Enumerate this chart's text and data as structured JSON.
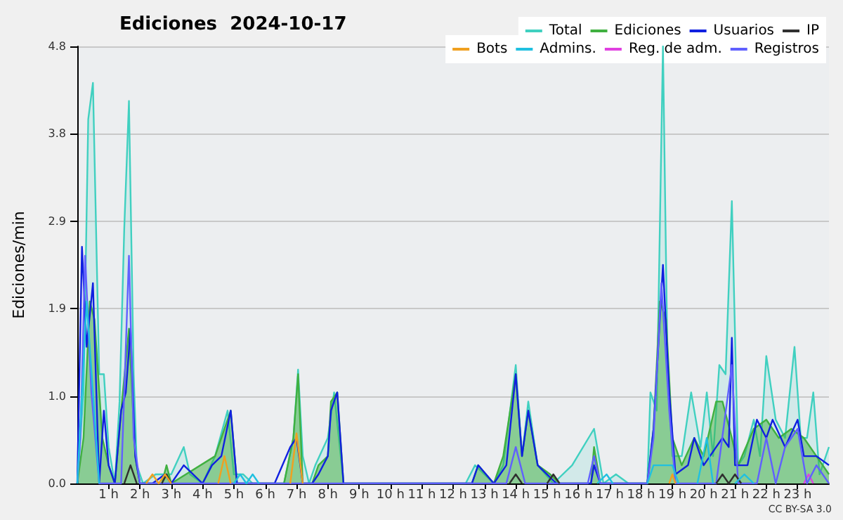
{
  "chart_data": {
    "type": "line",
    "title": "Ediciones  2024-10-17",
    "ylabel": "Ediciones/min",
    "annotations": [
      "CC BY-SA 3.0"
    ],
    "xlim": [
      0,
      24
    ],
    "xticks": [
      {
        "value": 1,
        "label": "1 h"
      },
      {
        "value": 2,
        "label": "2 h"
      },
      {
        "value": 3,
        "label": "3 h"
      },
      {
        "value": 4,
        "label": "4 h"
      },
      {
        "value": 5,
        "label": "5 h"
      },
      {
        "value": 6,
        "label": "6 h"
      },
      {
        "value": 7,
        "label": "7 h"
      },
      {
        "value": 8,
        "label": "8 h"
      },
      {
        "value": 9,
        "label": "9 h"
      },
      {
        "value": 10,
        "label": "10 h"
      },
      {
        "value": 11,
        "label": "11 h"
      },
      {
        "value": 12,
        "label": "12 h"
      },
      {
        "value": 13,
        "label": "13 h"
      },
      {
        "value": 14,
        "label": "14 h"
      },
      {
        "value": 15,
        "label": "15 h"
      },
      {
        "value": 16,
        "label": "16 h"
      },
      {
        "value": 17,
        "label": "17 h"
      },
      {
        "value": 18,
        "label": "18 h"
      },
      {
        "value": 19,
        "label": "19 h"
      },
      {
        "value": 20,
        "label": "20 h"
      },
      {
        "value": 21,
        "label": "21 h"
      },
      {
        "value": 22,
        "label": "22 h"
      },
      {
        "value": 23,
        "label": "23 h"
      }
    ],
    "ylim": [
      0,
      4.8
    ],
    "yticks": [
      {
        "value": 0,
        "label": "0.0"
      },
      {
        "value": 0.96,
        "label": "1.0"
      },
      {
        "value": 1.92,
        "label": "1.9"
      },
      {
        "value": 2.88,
        "label": "2.9"
      },
      {
        "value": 3.84,
        "label": "3.8"
      },
      {
        "value": 4.8,
        "label": "4.8"
      }
    ],
    "grid": "y",
    "legend": "top right",
    "marker": "none",
    "series": [
      {
        "name": "Total",
        "type": "area",
        "color": "#40d0c0",
        "x": [
          0,
          0.2,
          0.35,
          0.5,
          0.7,
          0.85,
          1.0,
          1.2,
          1.35,
          1.5,
          1.65,
          1.8,
          1.9,
          2.1,
          2.5,
          3.0,
          3.4,
          3.6,
          4.0,
          4.4,
          4.8,
          5.0,
          5.3,
          5.6,
          6.6,
          6.9,
          7.05,
          7.2,
          7.4,
          7.6,
          8.0,
          8.2,
          8.5,
          12.4,
          12.7,
          13.3,
          13.6,
          14.0,
          14.2,
          14.4,
          14.7,
          15.2,
          15.8,
          16.5,
          16.8,
          17.2,
          17.6,
          18.2,
          18.3,
          18.5,
          18.7,
          18.85,
          19.0,
          19.3,
          19.6,
          19.9,
          20.1,
          20.3,
          20.5,
          20.7,
          20.9,
          21.1,
          21.3,
          21.6,
          21.8,
          22.0,
          22.3,
          22.6,
          22.9,
          23.1,
          23.3,
          23.5,
          23.7,
          24
        ],
        "values": [
          0,
          1.0,
          4.0,
          4.4,
          1.2,
          1.2,
          0.4,
          0,
          0.9,
          2.8,
          4.2,
          1.2,
          0.2,
          0,
          0.1,
          0.1,
          0.4,
          0.1,
          0,
          0.3,
          0.8,
          0.1,
          0.1,
          0,
          0,
          0.5,
          1.25,
          0.3,
          0,
          0.2,
          0.5,
          1.0,
          0,
          0,
          0.2,
          0,
          0.2,
          1.3,
          0.3,
          0.9,
          0.2,
          0,
          0.2,
          0.6,
          0,
          0.1,
          0,
          0,
          1.0,
          0.8,
          4.8,
          1.2,
          0.3,
          0.3,
          1.0,
          0.4,
          1.0,
          0.3,
          1.3,
          1.2,
          3.1,
          0.2,
          0.3,
          0.7,
          0.3,
          1.4,
          0.7,
          0.5,
          1.5,
          0.5,
          0.5,
          1.0,
          0.1,
          0.4
        ]
      },
      {
        "name": "Ediciones",
        "type": "area",
        "color": "#40b040",
        "x": [
          0,
          0.2,
          0.4,
          0.55,
          0.8,
          1.0,
          1.2,
          1.4,
          1.65,
          1.85,
          2.0,
          2.7,
          2.85,
          3.0,
          4.4,
          4.7,
          4.9,
          5.1,
          6.6,
          6.9,
          7.05,
          7.2,
          7.5,
          7.7,
          8.0,
          8.1,
          8.3,
          8.5,
          12.6,
          12.8,
          13.3,
          13.6,
          14.0,
          14.2,
          14.4,
          14.7,
          15.1,
          15.4,
          16.4,
          16.5,
          16.7,
          18.2,
          18.4,
          18.6,
          18.8,
          19.0,
          19.3,
          19.7,
          20.0,
          20.4,
          20.6,
          20.9,
          21.1,
          21.6,
          22.0,
          22.4,
          22.8,
          23.2,
          23.6,
          24
        ],
        "values": [
          0,
          0.5,
          2.0,
          1.8,
          0.5,
          0.2,
          0,
          0.8,
          1.7,
          0.3,
          0,
          0,
          0.2,
          0,
          0.3,
          0.6,
          0.8,
          0,
          0,
          0.5,
          1.2,
          0,
          0,
          0.2,
          0.3,
          0.9,
          1.0,
          0,
          0,
          0.2,
          0,
          0.3,
          1.2,
          0.3,
          0.8,
          0.2,
          0.1,
          0,
          0,
          0.4,
          0,
          0,
          0.6,
          2.0,
          1.8,
          0.5,
          0.2,
          0.5,
          0.3,
          0.9,
          0.9,
          0.5,
          0.2,
          0.6,
          0.7,
          0.5,
          0.6,
          0.5,
          0.3,
          0.1
        ]
      },
      {
        "name": "Usuarios",
        "color": "#1020e0",
        "x": [
          0,
          0.15,
          0.3,
          0.5,
          0.7,
          0.85,
          1.0,
          1.2,
          1.4,
          1.55,
          1.7,
          1.85,
          2.0,
          2.4,
          2.8,
          3.0,
          3.4,
          4.0,
          4.3,
          4.6,
          4.9,
          5.1,
          6.3,
          6.8,
          7.0,
          7.2,
          7.5,
          7.7,
          8.0,
          8.1,
          8.3,
          8.5,
          12.6,
          12.8,
          13.3,
          13.7,
          14.0,
          14.2,
          14.4,
          14.7,
          15.0,
          15.3,
          16.4,
          16.5,
          16.7,
          18.2,
          18.4,
          18.7,
          18.9,
          19.1,
          19.5,
          19.7,
          20.0,
          20.4,
          20.6,
          20.8,
          20.9,
          21.0,
          21.4,
          21.7,
          22.0,
          22.2,
          22.6,
          23.0,
          23.2,
          23.6,
          24
        ],
        "values": [
          0,
          2.6,
          1.5,
          2.2,
          0,
          0.8,
          0.2,
          0,
          0.8,
          1.0,
          1.7,
          0.3,
          0,
          0,
          0.1,
          0,
          0.2,
          0,
          0.2,
          0.3,
          0.8,
          0,
          0,
          0.4,
          0.5,
          0,
          0,
          0.1,
          0.3,
          0.8,
          1.0,
          0,
          0,
          0.2,
          0,
          0.2,
          1.2,
          0.3,
          0.8,
          0.2,
          0.1,
          0,
          0,
          0.2,
          0,
          0,
          0.6,
          2.4,
          1.0,
          0.1,
          0.2,
          0.5,
          0.2,
          0.4,
          0.5,
          0.4,
          1.6,
          0.2,
          0.2,
          0.7,
          0.5,
          0.7,
          0.4,
          0.7,
          0.3,
          0.3,
          0.2
        ]
      },
      {
        "name": "IP",
        "color": "#303030",
        "x": [
          1.5,
          1.7,
          1.9,
          2.3,
          2.7,
          2.85,
          3.0,
          8,
          13.8,
          14.0,
          14.2,
          14.6,
          15.0,
          15.2,
          15.4,
          18,
          20.4,
          20.6,
          20.8,
          21.0,
          21.2
        ],
        "values": [
          0,
          0.2,
          0,
          null,
          0,
          0.1,
          0,
          null,
          0,
          0.1,
          0,
          null,
          0,
          0.1,
          0,
          null,
          0,
          0.1,
          0,
          0.1,
          0
        ]
      },
      {
        "name": "Bots",
        "color": "#f0a020",
        "x": [
          2.2,
          2.4,
          2.6,
          2.8,
          3.0,
          4,
          4.5,
          4.7,
          4.9,
          6,
          6.8,
          7.0,
          7.2,
          12,
          18.9,
          19.0,
          19.1
        ],
        "values": [
          0,
          0.1,
          0,
          0.1,
          0,
          null,
          0,
          0.3,
          0,
          null,
          0,
          0.55,
          0,
          null,
          0,
          0.1,
          0
        ]
      },
      {
        "name": "Admins.",
        "color": "#20c0e0",
        "x": [
          0,
          0.3,
          0.5,
          0.7,
          2.0,
          5.0,
          5.2,
          5.4,
          5.6,
          5.8,
          10,
          16.6,
          16.9,
          17.1,
          17.6,
          18.2,
          18.4,
          19.0,
          19.2,
          19.5,
          19.8,
          20.1,
          20.3,
          20.6,
          21.0,
          21.3,
          21.6
        ],
        "values": [
          0,
          2.0,
          1.0,
          0,
          null,
          0,
          0.1,
          0,
          0.1,
          0,
          null,
          0,
          0.1,
          0,
          null,
          0,
          0.2,
          0.2,
          0,
          null,
          0,
          0.5,
          0,
          null,
          0,
          0.1,
          0
        ]
      },
      {
        "name": "Reg. de adm.",
        "color": "#e040e0",
        "x": [
          23.2,
          23.35,
          23.5
        ],
        "values": [
          0,
          0.1,
          0
        ]
      },
      {
        "name": "Registros",
        "color": "#6060ff",
        "x": [
          0,
          0.1,
          0.25,
          0.45,
          0.7,
          1.4,
          1.65,
          1.8,
          2.0,
          13.7,
          14.0,
          14.3,
          16.3,
          16.5,
          16.7,
          18.2,
          18.4,
          18.65,
          18.9,
          19.1,
          20.4,
          20.9,
          21.1,
          21.7,
          22.0,
          22.3,
          22.6,
          23.0,
          23.3,
          23.6,
          24
        ],
        "values": [
          0,
          0.5,
          2.5,
          1.0,
          0,
          0,
          2.5,
          0.5,
          0,
          0,
          0.4,
          0,
          0,
          0.3,
          0,
          0,
          0.5,
          2.2,
          0.8,
          0,
          0,
          1.3,
          0,
          0,
          0.5,
          0,
          0.4,
          0.6,
          0,
          0.2,
          0
        ]
      }
    ]
  }
}
